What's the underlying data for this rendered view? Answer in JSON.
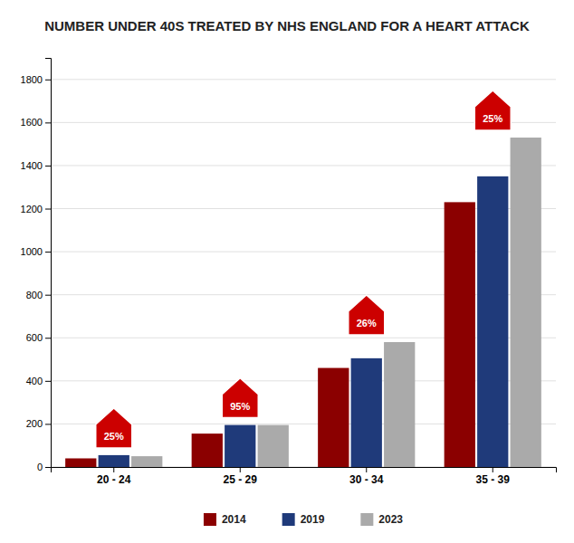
{
  "chart_data": {
    "type": "bar",
    "title": "NUMBER UNDER 40S TREATED BY NHS ENGLAND FOR A HEART ATTACK",
    "categories": [
      "20 - 24",
      "25 - 29",
      "30 - 34",
      "35 - 39"
    ],
    "series": [
      {
        "name": "2014",
        "color": "#8B0000",
        "values": [
          40,
          155,
          460,
          1230
        ]
      },
      {
        "name": "2019",
        "color": "#1F3A7A",
        "values": [
          55,
          195,
          505,
          1350
        ]
      },
      {
        "name": "2023",
        "color": "#AAAAAA",
        "values": [
          50,
          195,
          580,
          1530
        ]
      }
    ],
    "annotations": [
      {
        "category": "20 - 24",
        "text": "25%"
      },
      {
        "category": "25 - 29",
        "text": "95%"
      },
      {
        "category": "30 - 34",
        "text": "26%"
      },
      {
        "category": "35 - 39",
        "text": "25%"
      }
    ],
    "ylim": [
      0,
      1900
    ],
    "yticks": [
      0,
      200,
      400,
      600,
      800,
      1000,
      1200,
      1400,
      1600,
      1800
    ],
    "grid": true,
    "legend": "bottom"
  }
}
